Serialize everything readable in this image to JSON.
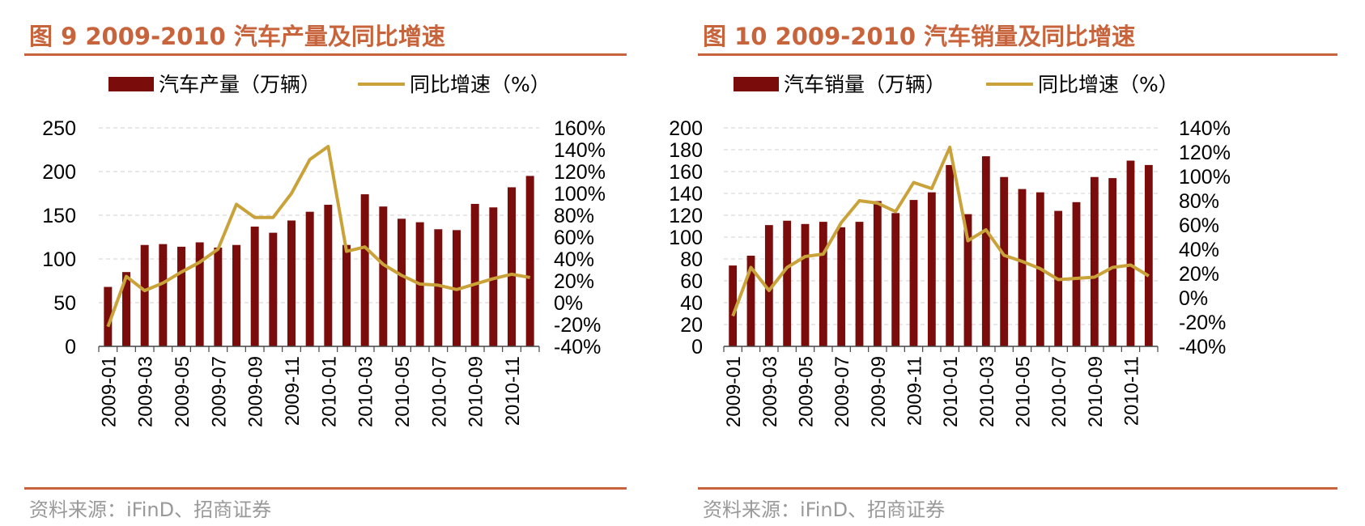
{
  "colors": {
    "accent": "#c8643c",
    "bar": "#7a0c0c",
    "line": "#c9a23a",
    "grid": "#d9d9d9",
    "source": "#999999"
  },
  "chart_data": [
    {
      "type": "bar",
      "title": "图 9 2009-2010 汽车产量及同比增速",
      "source": "资料来源：iFinD、招商证券",
      "x": [
        "2009-01",
        "2009-02",
        "2009-03",
        "2009-04",
        "2009-05",
        "2009-06",
        "2009-07",
        "2009-08",
        "2009-09",
        "2009-10",
        "2009-11",
        "2009-12",
        "2010-01",
        "2010-02",
        "2010-03",
        "2010-04",
        "2010-05",
        "2010-06",
        "2010-07",
        "2010-08",
        "2010-09",
        "2010-10",
        "2010-11",
        "2010-12"
      ],
      "x_tick_labels": [
        "2009-01",
        "2009-03",
        "2009-05",
        "2009-07",
        "2009-09",
        "2009-11",
        "2010-01",
        "2010-03",
        "2010-05",
        "2010-07",
        "2010-09",
        "2010-11"
      ],
      "series": [
        {
          "name": "汽车产量（万辆）",
          "type": "bar",
          "axis": "left",
          "values": [
            68,
            85,
            116,
            117,
            114,
            119,
            113,
            116,
            137,
            130,
            144,
            154,
            162,
            116,
            174,
            160,
            146,
            142,
            134,
            133,
            163,
            159,
            182,
            195
          ]
        },
        {
          "name": "同比增速（%）",
          "type": "line",
          "axis": "right",
          "values": [
            -22,
            24,
            11,
            18,
            28,
            37,
            49,
            90,
            78,
            78,
            100,
            131,
            143,
            47,
            51,
            35,
            25,
            17,
            16,
            12,
            17,
            22,
            26,
            23
          ]
        }
      ],
      "y_left": {
        "min": 0,
        "max": 250,
        "ticks": [
          "0",
          "50",
          "100",
          "150",
          "200",
          "250"
        ]
      },
      "y_right": {
        "min": -40,
        "max": 160,
        "ticks": [
          "-40%",
          "-20%",
          "0%",
          "20%",
          "40%",
          "60%",
          "80%",
          "100%",
          "120%",
          "140%",
          "160%"
        ]
      },
      "legend": "top",
      "grid": true
    },
    {
      "type": "bar",
      "title": "图 10 2009-2010 汽车销量及同比增速",
      "source": "资料来源：iFinD、招商证券",
      "x": [
        "2009-01",
        "2009-02",
        "2009-03",
        "2009-04",
        "2009-05",
        "2009-06",
        "2009-07",
        "2009-08",
        "2009-09",
        "2009-10",
        "2009-11",
        "2009-12",
        "2010-01",
        "2010-02",
        "2010-03",
        "2010-04",
        "2010-05",
        "2010-06",
        "2010-07",
        "2010-08",
        "2010-09",
        "2010-10",
        "2010-11",
        "2010-12"
      ],
      "x_tick_labels": [
        "2009-01",
        "2009-03",
        "2009-05",
        "2009-07",
        "2009-09",
        "2009-11",
        "2010-01",
        "2010-03",
        "2010-05",
        "2010-07",
        "2010-09",
        "2010-11"
      ],
      "series": [
        {
          "name": "汽车销量（万辆）",
          "type": "bar",
          "axis": "left",
          "values": [
            74,
            83,
            111,
            115,
            112,
            114,
            109,
            114,
            133,
            122,
            134,
            141,
            166,
            121,
            174,
            155,
            144,
            141,
            124,
            132,
            155,
            154,
            170,
            166
          ]
        },
        {
          "name": "同比增速（%）",
          "type": "line",
          "axis": "right",
          "values": [
            -15,
            25,
            6,
            25,
            34,
            36,
            62,
            80,
            78,
            71,
            95,
            90,
            124,
            47,
            56,
            35,
            30,
            24,
            15,
            16,
            17,
            25,
            27,
            18
          ]
        }
      ],
      "y_left": {
        "min": 0,
        "max": 200,
        "ticks": [
          "0",
          "20",
          "40",
          "60",
          "80",
          "100",
          "120",
          "140",
          "160",
          "180",
          "200"
        ]
      },
      "y_right": {
        "min": -40,
        "max": 140,
        "ticks": [
          "-40%",
          "-20%",
          "0%",
          "20%",
          "40%",
          "60%",
          "80%",
          "100%",
          "120%",
          "140%"
        ]
      },
      "legend": "top",
      "grid": true
    }
  ]
}
